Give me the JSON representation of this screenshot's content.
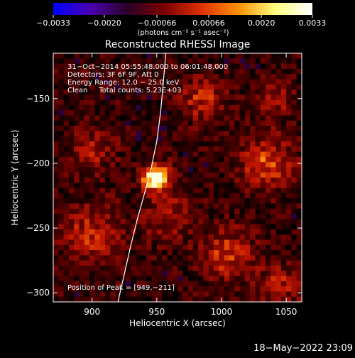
{
  "chart_data": {
    "type": "heatmap",
    "title": "Reconstructed RHESSI Image",
    "xlabel": "Heliocentric X (arcsec)",
    "ylabel": "Heliocentric Y (arcsec)",
    "xlim": [
      870,
      1062
    ],
    "ylim": [
      -307,
      -115
    ],
    "xticks": [
      900,
      950,
      1000,
      1050
    ],
    "yticks": [
      -150,
      -200,
      -250,
      -300
    ],
    "xtick_labels": [
      "900",
      "950",
      "1000",
      "1050"
    ],
    "ytick_labels": [
      "−150",
      "−200",
      "−250",
      "−300"
    ],
    "colorbar": {
      "range": [
        -0.0033,
        0.0033
      ],
      "ticks": [
        -0.0033,
        -0.002,
        -0.00066,
        0.00066,
        0.002,
        0.0033
      ],
      "tick_labels": [
        "−0.0033",
        "−0.0020",
        "−0.00066",
        "0.00066",
        "0.0020",
        "0.0033"
      ],
      "unit_label": "(photons cm⁻² s⁻¹ asec⁻²)",
      "colors": [
        "#0000ff",
        "#4a00b0",
        "#2a0028",
        "#7a0000",
        "#e03000",
        "#ff9000",
        "#ffff80",
        "#ffffff"
      ]
    },
    "annotations": [
      "31−Oct−2014 05:55:48.000 to 06:01:48.000",
      "Detectors: 3F 6F 9F, Att 0",
      "Energy Range: 12.0 − 25.0 keV",
      "Clean     Total counts: 5.23E+03"
    ],
    "peak_label": "Position of Peak = [949,−211]",
    "peak": [
      949,
      -211
    ],
    "limb_curve": {
      "x": [
        920,
        925,
        930,
        935,
        940,
        945,
        950,
        953,
        955,
        957
      ],
      "y": [
        -307,
        -285,
        -263,
        -243,
        -225,
        -207,
        -183,
        -160,
        -138,
        -115
      ]
    },
    "grid": false
  },
  "footer": {
    "timestamp": "18−May−2022 23:09"
  }
}
